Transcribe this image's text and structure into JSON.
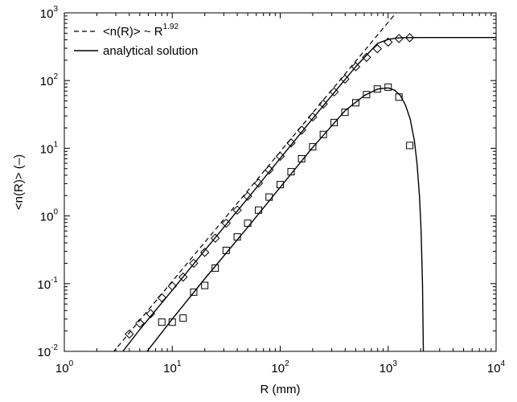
{
  "chart_data": {
    "type": "line",
    "xscale": "log",
    "yscale": "log",
    "xlim": [
      1,
      10000
    ],
    "ylim": [
      0.01,
      1000
    ],
    "xlabel": "R (mm)",
    "ylabel": "<n(R)> (–)",
    "xticks": [
      {
        "base": "10",
        "exp": "0"
      },
      {
        "base": "10",
        "exp": "1"
      },
      {
        "base": "10",
        "exp": "2"
      },
      {
        "base": "10",
        "exp": "3"
      },
      {
        "base": "10",
        "exp": "4"
      }
    ],
    "yticks": [
      {
        "base": "10",
        "exp": "-2"
      },
      {
        "base": "10",
        "exp": "-1"
      },
      {
        "base": "10",
        "exp": "0"
      },
      {
        "base": "10",
        "exp": "1"
      },
      {
        "base": "10",
        "exp": "2"
      },
      {
        "base": "10",
        "exp": "3"
      }
    ],
    "grid": false,
    "legend_position": "top-left",
    "legend": [
      {
        "label_main": "<n(R)> ~ R",
        "label_sup": "1.92",
        "style": "dashed"
      },
      {
        "label_main": "analytical solution",
        "label_sup": "",
        "style": "solid"
      }
    ],
    "powerlaw_fit": {
      "exponent": 1.92,
      "points": [
        [
          2.8,
          0.0095
        ],
        [
          2100,
          3000
        ]
      ]
    },
    "analytical_upper": [
      [
        3.4,
        0.0095
      ],
      [
        5,
        0.021
      ],
      [
        10,
        0.08
      ],
      [
        20,
        0.31
      ],
      [
        50,
        1.82
      ],
      [
        100,
        7.1
      ],
      [
        200,
        27.5
      ],
      [
        500,
        160
      ],
      [
        800,
        355
      ],
      [
        1000,
        405
      ],
      [
        1200,
        425
      ],
      [
        1400,
        430
      ],
      [
        2000,
        432
      ],
      [
        10000,
        432
      ]
    ],
    "analytical_lower": [
      [
        5.7,
        0.0095
      ],
      [
        10,
        0.03
      ],
      [
        20,
        0.118
      ],
      [
        50,
        0.68
      ],
      [
        100,
        2.65
      ],
      [
        200,
        10.3
      ],
      [
        400,
        36
      ],
      [
        600,
        60
      ],
      [
        800,
        75
      ],
      [
        1000,
        78
      ],
      [
        1150,
        72
      ],
      [
        1300,
        60
      ],
      [
        1450,
        43
      ],
      [
        1600,
        27
      ],
      [
        1750,
        13
      ],
      [
        1850,
        6
      ],
      [
        1950,
        2
      ],
      [
        2020,
        0.6
      ],
      [
        2080,
        0.1
      ],
      [
        2120,
        0.0095
      ]
    ],
    "series": [
      {
        "marker": "diamond",
        "x": [
          4,
          5,
          6.3,
          8,
          10,
          12.6,
          15.8,
          20,
          25,
          31.6,
          40,
          50,
          63,
          79,
          100,
          126,
          158,
          200,
          251,
          316,
          398,
          501,
          631,
          794,
          1000,
          1259,
          1585
        ],
        "y": [
          0.018,
          0.026,
          0.036,
          0.062,
          0.092,
          0.125,
          0.2,
          0.29,
          0.47,
          0.78,
          1.22,
          1.95,
          3.05,
          4.8,
          7.6,
          12,
          18.5,
          29,
          45,
          68,
          105,
          160,
          220,
          295,
          370,
          418,
          430
        ]
      },
      {
        "marker": "square",
        "x": [
          8,
          10,
          12.6,
          15.8,
          20,
          25,
          31.6,
          40,
          50,
          63,
          79,
          100,
          126,
          158,
          200,
          251,
          316,
          398,
          501,
          631,
          794,
          1000,
          1259,
          1585
        ],
        "y": [
          0.027,
          0.027,
          0.031,
          0.075,
          0.094,
          0.17,
          0.31,
          0.49,
          0.78,
          1.22,
          1.9,
          2.9,
          4.5,
          7,
          10.5,
          16,
          24,
          34,
          47,
          62,
          75,
          80,
          57,
          11
        ]
      }
    ]
  }
}
